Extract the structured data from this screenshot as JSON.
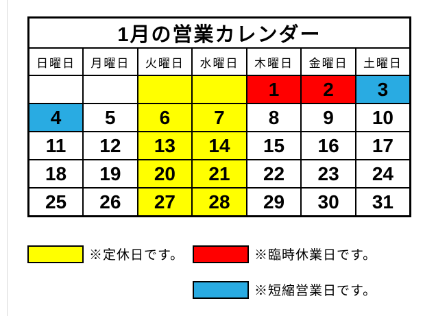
{
  "title": "1月の営業カレンダー",
  "weekdays": [
    "日曜日",
    "月曜日",
    "火曜日",
    "水曜日",
    "木曜日",
    "金曜日",
    "土曜日"
  ],
  "colors": {
    "regular_holiday": "#ffff00",
    "temporary_closure": "#ff0000",
    "short_business": "#29abe2",
    "cell_default": "#ffffff",
    "border": "#000000",
    "background": "#ffffff"
  },
  "calendar": {
    "month": "1月",
    "rows": [
      [
        {
          "day": "",
          "type": "none"
        },
        {
          "day": "",
          "type": "none"
        },
        {
          "day": "",
          "type": "regular_holiday"
        },
        {
          "day": "",
          "type": "regular_holiday"
        },
        {
          "day": "1",
          "type": "temporary_closure"
        },
        {
          "day": "2",
          "type": "temporary_closure"
        },
        {
          "day": "3",
          "type": "short_business"
        }
      ],
      [
        {
          "day": "4",
          "type": "short_business"
        },
        {
          "day": "5",
          "type": "none"
        },
        {
          "day": "6",
          "type": "regular_holiday"
        },
        {
          "day": "7",
          "type": "regular_holiday"
        },
        {
          "day": "8",
          "type": "none"
        },
        {
          "day": "9",
          "type": "none"
        },
        {
          "day": "10",
          "type": "none"
        }
      ],
      [
        {
          "day": "11",
          "type": "none"
        },
        {
          "day": "12",
          "type": "none"
        },
        {
          "day": "13",
          "type": "regular_holiday"
        },
        {
          "day": "14",
          "type": "regular_holiday"
        },
        {
          "day": "15",
          "type": "none"
        },
        {
          "day": "16",
          "type": "none"
        },
        {
          "day": "17",
          "type": "none"
        }
      ],
      [
        {
          "day": "18",
          "type": "none"
        },
        {
          "day": "19",
          "type": "none"
        },
        {
          "day": "20",
          "type": "regular_holiday"
        },
        {
          "day": "21",
          "type": "regular_holiday"
        },
        {
          "day": "22",
          "type": "none"
        },
        {
          "day": "23",
          "type": "none"
        },
        {
          "day": "24",
          "type": "none"
        }
      ],
      [
        {
          "day": "25",
          "type": "none"
        },
        {
          "day": "26",
          "type": "none"
        },
        {
          "day": "27",
          "type": "regular_holiday"
        },
        {
          "day": "28",
          "type": "regular_holiday"
        },
        {
          "day": "29",
          "type": "none"
        },
        {
          "day": "30",
          "type": "none"
        },
        {
          "day": "31",
          "type": "none"
        }
      ]
    ]
  },
  "legend": [
    {
      "type": "regular_holiday",
      "label": "※定休日です。"
    },
    {
      "type": "temporary_closure",
      "label": "※臨時休業日です。"
    },
    {
      "type": "short_business",
      "label": "※短縮営業日です。"
    }
  ]
}
